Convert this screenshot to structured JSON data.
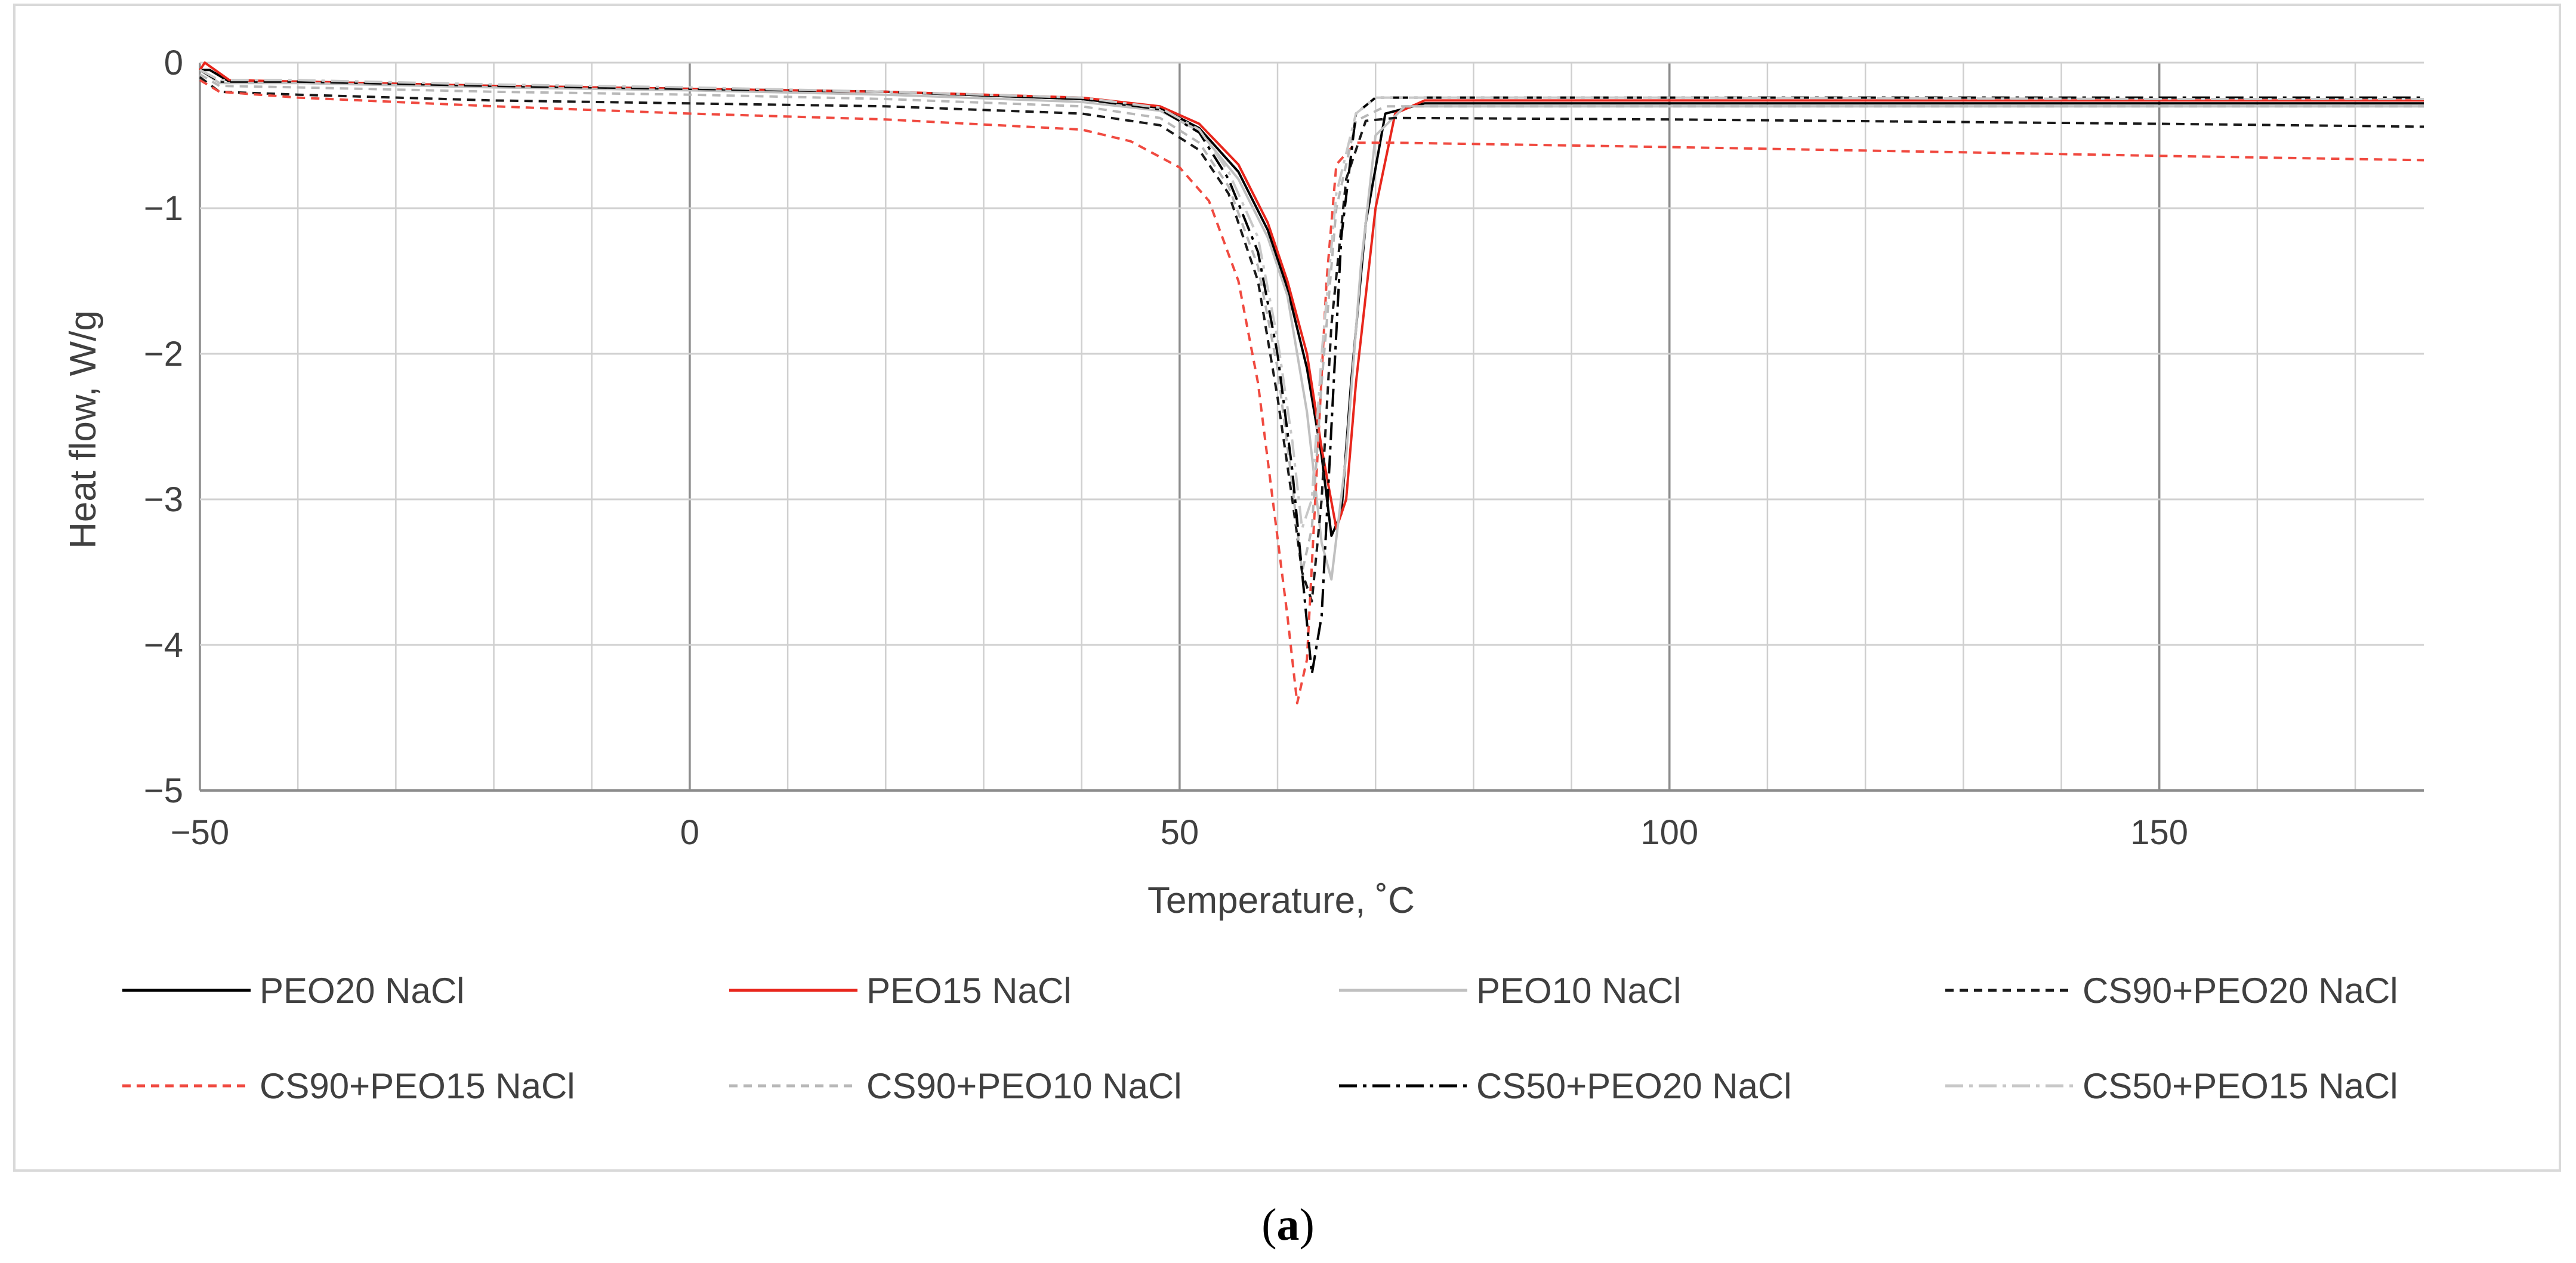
{
  "caption": {
    "open": "(",
    "letter": "a",
    "close": ")"
  },
  "chart_data": {
    "type": "line",
    "title": "",
    "xlabel": "Temperature, ˚C",
    "ylabel": "Heat flow, W/g",
    "xlim": [
      -50,
      177
    ],
    "ylim": [
      -5,
      0
    ],
    "x_major_ticks": [
      -50,
      0,
      50,
      100,
      150
    ],
    "x_tick_labels": [
      "−50",
      "0",
      "50",
      "100",
      "150"
    ],
    "x_minor_step": 10,
    "y_major_ticks": [
      0,
      -1,
      -2,
      -3,
      -4,
      -5
    ],
    "y_tick_labels": [
      "0",
      "−1",
      "−2",
      "−3",
      "−4",
      "−5"
    ],
    "grid": true,
    "legend_position": "bottom",
    "series": [
      {
        "name": "PEO20 NaCl",
        "color": "#000000",
        "dash": "solid",
        "x": [
          -50,
          -49,
          -47,
          -40,
          -20,
          0,
          20,
          40,
          48,
          52,
          56,
          59,
          61,
          63,
          64.5,
          65.5,
          66.5,
          67.5,
          69,
          71,
          75,
          100,
          150,
          177
        ],
        "y": [
          -0.05,
          -0.05,
          -0.13,
          -0.13,
          -0.16,
          -0.18,
          -0.2,
          -0.25,
          -0.31,
          -0.45,
          -0.75,
          -1.15,
          -1.55,
          -2.1,
          -2.7,
          -3.25,
          -3.1,
          -2.2,
          -1.1,
          -0.35,
          -0.28,
          -0.28,
          -0.28,
          -0.28
        ]
      },
      {
        "name": "PEO15 NaCl",
        "color": "#e8261c",
        "dash": "solid",
        "x": [
          -50,
          -49.5,
          -47,
          -40,
          -20,
          0,
          20,
          40,
          48,
          52,
          56,
          59,
          61,
          63,
          64.5,
          66,
          67,
          68,
          70,
          72,
          75,
          100,
          150,
          177
        ],
        "y": [
          -0.05,
          0.0,
          -0.12,
          -0.13,
          -0.16,
          -0.18,
          -0.2,
          -0.24,
          -0.3,
          -0.42,
          -0.7,
          -1.1,
          -1.5,
          -2.0,
          -2.65,
          -3.2,
          -3.0,
          -2.2,
          -1.0,
          -0.35,
          -0.26,
          -0.26,
          -0.26,
          -0.26
        ]
      },
      {
        "name": "PEO10 NaCl",
        "color": "#c0c0c0",
        "dash": "solid",
        "x": [
          -50,
          -48,
          -40,
          -20,
          0,
          20,
          40,
          48,
          52,
          56,
          59,
          61,
          63,
          64.5,
          65.5,
          67,
          68.5,
          70,
          73,
          100,
          150,
          177
        ],
        "y": [
          -0.05,
          -0.14,
          -0.14,
          -0.17,
          -0.19,
          -0.22,
          -0.27,
          -0.33,
          -0.47,
          -0.8,
          -1.2,
          -1.6,
          -2.4,
          -3.3,
          -3.55,
          -2.7,
          -1.4,
          -0.5,
          -0.3,
          -0.3,
          -0.3,
          -0.3
        ]
      },
      {
        "name": "CS90+PEO20 NaCl",
        "color": "#1a1a1a",
        "dash": "dotted",
        "x": [
          -50,
          -48,
          -40,
          -20,
          0,
          20,
          40,
          48,
          52,
          55,
          58,
          60,
          61.5,
          62.5,
          63.5,
          64.5,
          65.5,
          67,
          69,
          72,
          100,
          150,
          177
        ],
        "y": [
          -0.1,
          -0.2,
          -0.22,
          -0.26,
          -0.28,
          -0.3,
          -0.35,
          -0.43,
          -0.6,
          -0.9,
          -1.5,
          -2.3,
          -3.0,
          -3.5,
          -3.7,
          -3.0,
          -1.8,
          -0.8,
          -0.4,
          -0.38,
          -0.39,
          -0.42,
          -0.44
        ]
      },
      {
        "name": "CS90+PEO15 NaCl",
        "color": "#f04a40",
        "dash": "dotted",
        "x": [
          -50,
          -48,
          -40,
          -20,
          0,
          20,
          40,
          45,
          50,
          53,
          56,
          58,
          59.5,
          61,
          62,
          63,
          64,
          65,
          66,
          68,
          72,
          100,
          150,
          177
        ],
        "y": [
          -0.12,
          -0.2,
          -0.24,
          -0.3,
          -0.35,
          -0.39,
          -0.46,
          -0.54,
          -0.72,
          -0.95,
          -1.5,
          -2.2,
          -3.0,
          -3.8,
          -4.4,
          -4.1,
          -2.8,
          -1.5,
          -0.7,
          -0.55,
          -0.55,
          -0.58,
          -0.64,
          -0.67
        ]
      },
      {
        "name": "CS90+PEO10 NaCl",
        "color": "#b8b8b8",
        "dash": "dotted",
        "x": [
          -50,
          -48,
          -40,
          -20,
          0,
          20,
          40,
          48,
          52,
          55,
          58,
          60,
          61.5,
          62.5,
          63.5,
          64.5,
          66,
          68,
          71,
          100,
          150,
          177
        ],
        "y": [
          -0.08,
          -0.16,
          -0.17,
          -0.2,
          -0.22,
          -0.25,
          -0.3,
          -0.38,
          -0.55,
          -0.85,
          -1.4,
          -2.1,
          -2.9,
          -3.5,
          -3.2,
          -2.2,
          -1.0,
          -0.4,
          -0.3,
          -0.3,
          -0.3,
          -0.3
        ]
      },
      {
        "name": "CS50+PEO20 NaCl",
        "color": "#000000",
        "dash": "dashdot",
        "x": [
          -50,
          -48,
          -40,
          -20,
          0,
          20,
          40,
          48,
          52,
          55,
          58,
          60,
          61.5,
          62.5,
          63.5,
          64.5,
          65.5,
          66.5,
          68,
          70,
          100,
          150,
          177
        ],
        "y": [
          -0.05,
          -0.13,
          -0.13,
          -0.16,
          -0.18,
          -0.2,
          -0.25,
          -0.32,
          -0.48,
          -0.8,
          -1.3,
          -2.0,
          -2.8,
          -3.5,
          -4.2,
          -3.8,
          -2.5,
          -1.2,
          -0.35,
          -0.24,
          -0.24,
          -0.24,
          -0.24
        ]
      },
      {
        "name": "CS50+PEO15 NaCl",
        "color": "#c8c8c8",
        "dash": "dashdot",
        "x": [
          -50,
          -48,
          -40,
          -20,
          0,
          20,
          40,
          48,
          52,
          55,
          58,
          60,
          61.5,
          62.5,
          63.5,
          64.5,
          66,
          68,
          70,
          100,
          150,
          177
        ],
        "y": [
          -0.05,
          -0.12,
          -0.12,
          -0.15,
          -0.17,
          -0.2,
          -0.24,
          -0.31,
          -0.46,
          -0.75,
          -1.2,
          -1.9,
          -2.6,
          -3.2,
          -3.0,
          -2.0,
          -0.9,
          -0.35,
          -0.24,
          -0.24,
          -0.25,
          -0.25
        ]
      }
    ]
  }
}
